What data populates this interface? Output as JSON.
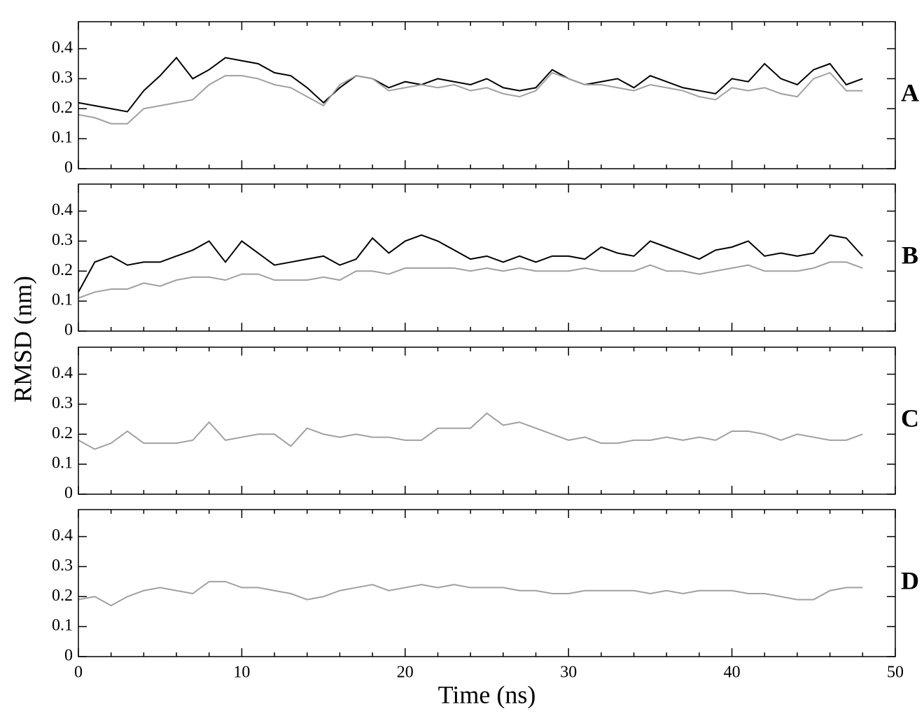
{
  "chart_data": [
    {
      "type": "line",
      "panel_label": "A",
      "y_label": "RMSD (nm)",
      "x": [
        0,
        1,
        2,
        3,
        4,
        5,
        6,
        7,
        8,
        9,
        10,
        11,
        12,
        13,
        14,
        15,
        16,
        17,
        18,
        19,
        20,
        21,
        22,
        23,
        24,
        25,
        26,
        27,
        28,
        29,
        30,
        31,
        32,
        33,
        34,
        35,
        36,
        37,
        38,
        39,
        40,
        41,
        42,
        43,
        44,
        45,
        46,
        47,
        48
      ],
      "series": [
        {
          "color": "#000000",
          "values": [
            0.22,
            0.21,
            0.2,
            0.19,
            0.26,
            0.31,
            0.37,
            0.3,
            0.33,
            0.37,
            0.36,
            0.35,
            0.32,
            0.31,
            0.27,
            0.22,
            0.27,
            0.31,
            0.3,
            0.27,
            0.29,
            0.28,
            0.3,
            0.29,
            0.28,
            0.3,
            0.27,
            0.26,
            0.27,
            0.33,
            0.3,
            0.28,
            0.29,
            0.3,
            0.27,
            0.31,
            0.29,
            0.27,
            0.26,
            0.25,
            0.3,
            0.29,
            0.35,
            0.3,
            0.28,
            0.33,
            0.35,
            0.28,
            0.3
          ]
        },
        {
          "color": "#a0a0a0",
          "values": [
            0.18,
            0.17,
            0.15,
            0.15,
            0.2,
            0.21,
            0.22,
            0.23,
            0.28,
            0.31,
            0.31,
            0.3,
            0.28,
            0.27,
            0.24,
            0.21,
            0.28,
            0.31,
            0.3,
            0.26,
            0.27,
            0.28,
            0.27,
            0.28,
            0.26,
            0.27,
            0.25,
            0.24,
            0.26,
            0.32,
            0.3,
            0.28,
            0.28,
            0.27,
            0.26,
            0.28,
            0.27,
            0.26,
            0.24,
            0.23,
            0.27,
            0.26,
            0.27,
            0.25,
            0.24,
            0.3,
            0.32,
            0.26,
            0.26
          ]
        }
      ],
      "xlim": [
        0,
        50
      ],
      "xticks": [
        0,
        10,
        20,
        30,
        40,
        50
      ],
      "x_minor_per_major": 5,
      "xticklabels": false,
      "ylim": [
        0,
        0.49
      ],
      "yticks": [
        0,
        0.1,
        0.2,
        0.3,
        0.4
      ]
    },
    {
      "type": "line",
      "panel_label": "B",
      "x": [
        0,
        1,
        2,
        3,
        4,
        5,
        6,
        7,
        8,
        9,
        10,
        11,
        12,
        13,
        14,
        15,
        16,
        17,
        18,
        19,
        20,
        21,
        22,
        23,
        24,
        25,
        26,
        27,
        28,
        29,
        30,
        31,
        32,
        33,
        34,
        35,
        36,
        37,
        38,
        39,
        40,
        41,
        42,
        43,
        44,
        45,
        46,
        47,
        48
      ],
      "series": [
        {
          "color": "#000000",
          "values": [
            0.13,
            0.23,
            0.25,
            0.22,
            0.23,
            0.23,
            0.25,
            0.27,
            0.3,
            0.23,
            0.3,
            0.26,
            0.22,
            0.23,
            0.24,
            0.25,
            0.22,
            0.24,
            0.31,
            0.26,
            0.3,
            0.32,
            0.3,
            0.27,
            0.24,
            0.25,
            0.23,
            0.25,
            0.23,
            0.25,
            0.25,
            0.24,
            0.28,
            0.26,
            0.25,
            0.3,
            0.28,
            0.26,
            0.24,
            0.27,
            0.28,
            0.3,
            0.25,
            0.26,
            0.25,
            0.26,
            0.32,
            0.31,
            0.25
          ]
        },
        {
          "color": "#a0a0a0",
          "values": [
            0.11,
            0.13,
            0.14,
            0.14,
            0.16,
            0.15,
            0.17,
            0.18,
            0.18,
            0.17,
            0.19,
            0.19,
            0.17,
            0.17,
            0.17,
            0.18,
            0.17,
            0.2,
            0.2,
            0.19,
            0.21,
            0.21,
            0.21,
            0.21,
            0.2,
            0.21,
            0.2,
            0.21,
            0.2,
            0.2,
            0.2,
            0.21,
            0.2,
            0.2,
            0.2,
            0.22,
            0.2,
            0.2,
            0.19,
            0.2,
            0.21,
            0.22,
            0.2,
            0.2,
            0.2,
            0.21,
            0.23,
            0.23,
            0.21
          ]
        }
      ],
      "xlim": [
        0,
        50
      ],
      "xticks": [
        0,
        10,
        20,
        30,
        40,
        50
      ],
      "x_minor_per_major": 5,
      "xticklabels": false,
      "ylim": [
        0,
        0.49
      ],
      "yticks": [
        0,
        0.1,
        0.2,
        0.3,
        0.4
      ]
    },
    {
      "type": "line",
      "panel_label": "C",
      "x": [
        0,
        1,
        2,
        3,
        4,
        5,
        6,
        7,
        8,
        9,
        10,
        11,
        12,
        13,
        14,
        15,
        16,
        17,
        18,
        19,
        20,
        21,
        22,
        23,
        24,
        25,
        26,
        27,
        28,
        29,
        30,
        31,
        32,
        33,
        34,
        35,
        36,
        37,
        38,
        39,
        40,
        41,
        42,
        43,
        44,
        45,
        46,
        47,
        48
      ],
      "series": [
        {
          "color": "#a0a0a0",
          "values": [
            0.18,
            0.15,
            0.17,
            0.21,
            0.17,
            0.17,
            0.17,
            0.18,
            0.24,
            0.18,
            0.19,
            0.2,
            0.2,
            0.16,
            0.22,
            0.2,
            0.19,
            0.2,
            0.19,
            0.19,
            0.18,
            0.18,
            0.22,
            0.22,
            0.22,
            0.27,
            0.23,
            0.24,
            0.22,
            0.2,
            0.18,
            0.19,
            0.17,
            0.17,
            0.18,
            0.18,
            0.19,
            0.18,
            0.19,
            0.18,
            0.21,
            0.21,
            0.2,
            0.18,
            0.2,
            0.19,
            0.18,
            0.18,
            0.2
          ]
        }
      ],
      "xlim": [
        0,
        50
      ],
      "xticks": [
        0,
        10,
        20,
        30,
        40,
        50
      ],
      "x_minor_per_major": 5,
      "xticklabels": false,
      "ylim": [
        0,
        0.49
      ],
      "yticks": [
        0,
        0.1,
        0.2,
        0.3,
        0.4
      ]
    },
    {
      "type": "line",
      "panel_label": "D",
      "x_label": "Time (ns)",
      "x": [
        0,
        1,
        2,
        3,
        4,
        5,
        6,
        7,
        8,
        9,
        10,
        11,
        12,
        13,
        14,
        15,
        16,
        17,
        18,
        19,
        20,
        21,
        22,
        23,
        24,
        25,
        26,
        27,
        28,
        29,
        30,
        31,
        32,
        33,
        34,
        35,
        36,
        37,
        38,
        39,
        40,
        41,
        42,
        43,
        44,
        45,
        46,
        47,
        48
      ],
      "series": [
        {
          "color": "#a0a0a0",
          "values": [
            0.19,
            0.2,
            0.17,
            0.2,
            0.22,
            0.23,
            0.22,
            0.21,
            0.25,
            0.25,
            0.23,
            0.23,
            0.22,
            0.21,
            0.19,
            0.2,
            0.22,
            0.23,
            0.24,
            0.22,
            0.23,
            0.24,
            0.23,
            0.24,
            0.23,
            0.23,
            0.23,
            0.22,
            0.22,
            0.21,
            0.21,
            0.22,
            0.22,
            0.22,
            0.22,
            0.21,
            0.22,
            0.21,
            0.22,
            0.22,
            0.22,
            0.21,
            0.21,
            0.2,
            0.19,
            0.19,
            0.22,
            0.23,
            0.23
          ]
        }
      ],
      "xlim": [
        0,
        50
      ],
      "xticks": [
        0,
        10,
        20,
        30,
        40,
        50
      ],
      "x_minor_per_major": 5,
      "xticklabels": true,
      "ylim": [
        0,
        0.49
      ],
      "yticks": [
        0,
        0.1,
        0.2,
        0.3,
        0.4
      ]
    }
  ]
}
